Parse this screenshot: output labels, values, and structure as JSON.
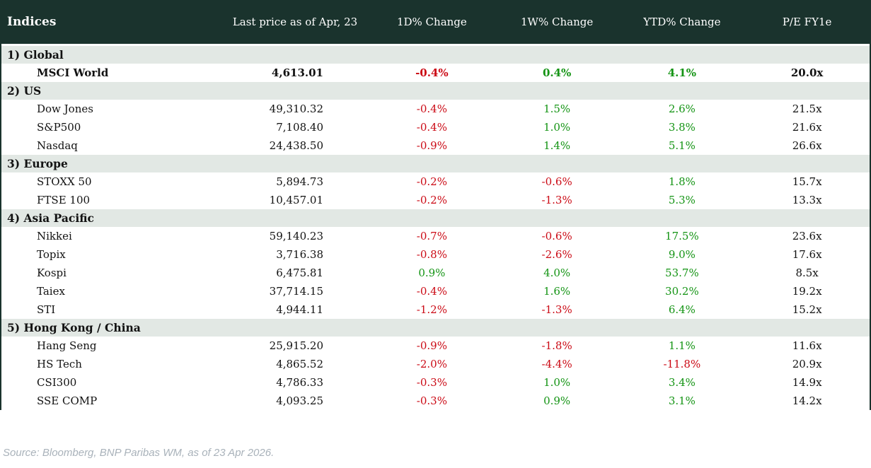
{
  "table": {
    "columns": [
      "Indices",
      "Last price as of Apr, 23",
      "1D% Change",
      "1W% Change",
      "YTD% Change",
      "P/E FY1e"
    ],
    "sections": [
      {
        "label": "1) Global",
        "rows": [
          {
            "name": "MSCI World",
            "price": "4,613.01",
            "chg_1d": "-0.4%",
            "chg_1w": "0.4%",
            "chg_ytd": "4.1%",
            "pe": "20.0x",
            "bold": true
          }
        ]
      },
      {
        "label": "2) US",
        "rows": [
          {
            "name": "Dow Jones",
            "price": "49,310.32",
            "chg_1d": "-0.4%",
            "chg_1w": "1.5%",
            "chg_ytd": "2.6%",
            "pe": "21.5x",
            "bold": false
          },
          {
            "name": "S&P500",
            "price": "7,108.40",
            "chg_1d": "-0.4%",
            "chg_1w": "1.0%",
            "chg_ytd": "3.8%",
            "pe": "21.6x",
            "bold": false
          },
          {
            "name": "Nasdaq",
            "price": "24,438.50",
            "chg_1d": "-0.9%",
            "chg_1w": "1.4%",
            "chg_ytd": "5.1%",
            "pe": "26.6x",
            "bold": false
          }
        ]
      },
      {
        "label": "3) Europe",
        "rows": [
          {
            "name": "STOXX 50",
            "price": "5,894.73",
            "chg_1d": "-0.2%",
            "chg_1w": "-0.6%",
            "chg_ytd": "1.8%",
            "pe": "15.7x",
            "bold": false
          },
          {
            "name": "FTSE 100",
            "price": "10,457.01",
            "chg_1d": "-0.2%",
            "chg_1w": "-1.3%",
            "chg_ytd": "5.3%",
            "pe": "13.3x",
            "bold": false
          }
        ]
      },
      {
        "label": "4) Asia Pacific",
        "rows": [
          {
            "name": "Nikkei",
            "price": "59,140.23",
            "chg_1d": "-0.7%",
            "chg_1w": "-0.6%",
            "chg_ytd": "17.5%",
            "pe": "23.6x",
            "bold": false
          },
          {
            "name": "Topix",
            "price": "3,716.38",
            "chg_1d": "-0.8%",
            "chg_1w": "-2.6%",
            "chg_ytd": "9.0%",
            "pe": "17.6x",
            "bold": false
          },
          {
            "name": "Kospi",
            "price": "6,475.81",
            "chg_1d": "0.9%",
            "chg_1w": "4.0%",
            "chg_ytd": "53.7%",
            "pe": "8.5x",
            "bold": false
          },
          {
            "name": "Taiex",
            "price": "37,714.15",
            "chg_1d": "-0.4%",
            "chg_1w": "1.6%",
            "chg_ytd": "30.2%",
            "pe": "19.2x",
            "bold": false
          },
          {
            "name": "STI",
            "price": "4,944.11",
            "chg_1d": "-1.2%",
            "chg_1w": "-1.3%",
            "chg_ytd": "6.4%",
            "pe": "15.2x",
            "bold": false
          }
        ]
      },
      {
        "label": "5) Hong Kong / China",
        "rows": [
          {
            "name": "Hang Seng",
            "price": "25,915.20",
            "chg_1d": "-0.9%",
            "chg_1w": "-1.8%",
            "chg_ytd": "1.1%",
            "pe": "11.6x",
            "bold": false
          },
          {
            "name": "HS Tech",
            "price": "4,865.52",
            "chg_1d": "-2.0%",
            "chg_1w": "-4.4%",
            "chg_ytd": "-11.8%",
            "pe": "20.9x",
            "bold": false
          },
          {
            "name": "CSI300",
            "price": "4,786.33",
            "chg_1d": "-0.3%",
            "chg_1w": "1.0%",
            "chg_ytd": "3.4%",
            "pe": "14.9x",
            "bold": false
          },
          {
            "name": "SSE COMP",
            "price": "4,093.25",
            "chg_1d": "-0.3%",
            "chg_1w": "0.9%",
            "chg_ytd": "3.1%",
            "pe": "14.2x",
            "bold": false
          }
        ]
      }
    ]
  },
  "footer": {
    "source": "Source: Bloomberg, BNP Paribas WM, as of 23 Apr 2026."
  },
  "colors": {
    "header_bg": "#1a332d",
    "band_bg": "#e2e8e4",
    "positive": "#149414",
    "negative": "#cb0a15"
  }
}
